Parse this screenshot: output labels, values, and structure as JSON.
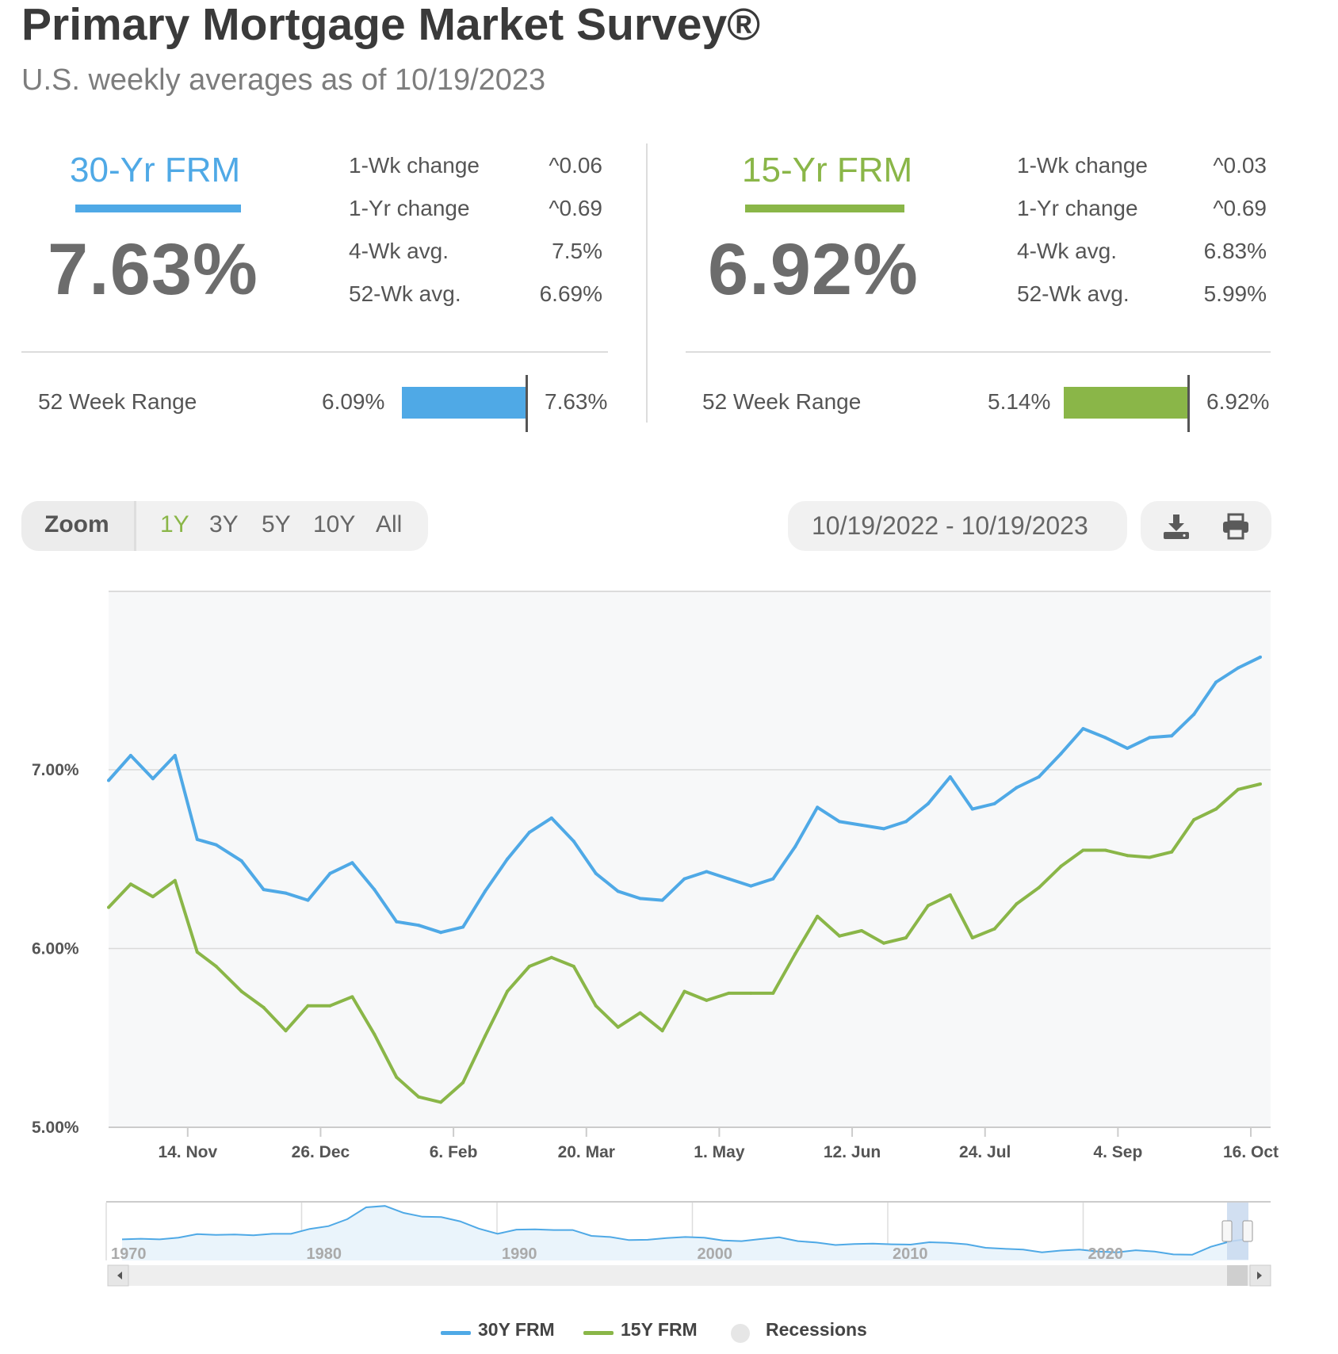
{
  "header": {
    "title": "Primary Mortgage Market Survey®",
    "subtitle": "U.S. weekly averages as of 10/19/2023"
  },
  "panels": [
    {
      "name": "30-Yr FRM",
      "color": "#4fa9e6",
      "rate": "7.63%",
      "stats": [
        {
          "label": "1-Wk change",
          "value": "0.06",
          "arrow": "^"
        },
        {
          "label": "1-Yr change",
          "value": "0.69",
          "arrow": "^"
        },
        {
          "label": "4-Wk avg.",
          "value": "7.5%"
        },
        {
          "label": "52-Wk avg.",
          "value": "6.69%"
        }
      ],
      "range": {
        "label": "52 Week Range",
        "low": "6.09%",
        "high": "7.63%",
        "current_fraction": 1.0
      }
    },
    {
      "name": "15-Yr FRM",
      "color": "#8ab648",
      "rate": "6.92%",
      "stats": [
        {
          "label": "1-Wk change",
          "value": "0.03",
          "arrow": "^"
        },
        {
          "label": "1-Yr change",
          "value": "0.69",
          "arrow": "^"
        },
        {
          "label": "4-Wk avg.",
          "value": "6.83%"
        },
        {
          "label": "52-Wk avg.",
          "value": "5.99%"
        }
      ],
      "range": {
        "label": "52 Week Range",
        "low": "5.14%",
        "high": "6.92%",
        "current_fraction": 1.0
      }
    }
  ],
  "toolbar": {
    "zoom_label": "Zoom",
    "zoom_options": [
      "1Y",
      "3Y",
      "5Y",
      "10Y",
      "All"
    ],
    "selected_zoom": "1Y",
    "date_range": "10/19/2022 - 10/19/2023",
    "selected_color": "#8ab648",
    "icons": [
      "download-icon",
      "print-icon"
    ]
  },
  "chart_data": {
    "type": "line",
    "x_ticks": [
      "14. Nov",
      "26. Dec",
      "6. Feb",
      "20. Mar",
      "1. May",
      "12. Jun",
      "24. Jul",
      "4. Sep",
      "16. Oct"
    ],
    "y_ticks": [
      "5.00%",
      "6.00%",
      "7.00%"
    ],
    "y_tick_values": [
      5.0,
      6.0,
      7.0
    ],
    "ylim": [
      5.0,
      8.0
    ],
    "grid": true,
    "x": [
      "2022-10-20",
      "2022-10-27",
      "2022-11-03",
      "2022-11-10",
      "2022-11-17",
      "2022-11-23",
      "2022-12-01",
      "2022-12-08",
      "2022-12-15",
      "2022-12-22",
      "2022-12-29",
      "2023-01-05",
      "2023-01-12",
      "2023-01-19",
      "2023-01-26",
      "2023-02-02",
      "2023-02-09",
      "2023-02-16",
      "2023-02-23",
      "2023-03-02",
      "2023-03-09",
      "2023-03-16",
      "2023-03-23",
      "2023-03-30",
      "2023-04-06",
      "2023-04-13",
      "2023-04-20",
      "2023-04-27",
      "2023-05-04",
      "2023-05-11",
      "2023-05-18",
      "2023-05-25",
      "2023-06-01",
      "2023-06-08",
      "2023-06-15",
      "2023-06-22",
      "2023-06-29",
      "2023-07-06",
      "2023-07-13",
      "2023-07-20",
      "2023-07-27",
      "2023-08-03",
      "2023-08-10",
      "2023-08-17",
      "2023-08-24",
      "2023-08-31",
      "2023-09-07",
      "2023-09-14",
      "2023-09-21",
      "2023-09-28",
      "2023-10-05",
      "2023-10-12",
      "2023-10-19"
    ],
    "series": [
      {
        "name": "30Y FRM",
        "color": "#4fa9e6",
        "values": [
          6.94,
          7.08,
          6.95,
          7.08,
          6.61,
          6.58,
          6.49,
          6.33,
          6.31,
          6.27,
          6.42,
          6.48,
          6.33,
          6.15,
          6.13,
          6.09,
          6.12,
          6.32,
          6.5,
          6.65,
          6.73,
          6.6,
          6.42,
          6.32,
          6.28,
          6.27,
          6.39,
          6.43,
          6.39,
          6.35,
          6.39,
          6.57,
          6.79,
          6.71,
          6.69,
          6.67,
          6.71,
          6.81,
          6.96,
          6.78,
          6.81,
          6.9,
          6.96,
          7.09,
          7.23,
          7.18,
          7.12,
          7.18,
          7.19,
          7.31,
          7.49,
          7.57,
          7.63
        ]
      },
      {
        "name": "15Y FRM",
        "color": "#8ab648",
        "values": [
          6.23,
          6.36,
          6.29,
          6.38,
          5.98,
          5.9,
          5.76,
          5.67,
          5.54,
          5.68,
          5.68,
          5.73,
          5.52,
          5.28,
          5.17,
          5.14,
          5.25,
          5.51,
          5.76,
          5.9,
          5.95,
          5.9,
          5.68,
          5.56,
          5.64,
          5.54,
          5.76,
          5.71,
          5.75,
          5.75,
          5.75,
          5.97,
          6.18,
          6.07,
          6.1,
          6.03,
          6.06,
          6.24,
          6.3,
          6.06,
          6.11,
          6.25,
          6.34,
          6.46,
          6.55,
          6.55,
          6.52,
          6.51,
          6.54,
          6.72,
          6.78,
          6.89,
          6.92
        ]
      }
    ],
    "navigator": {
      "labels": [
        "1970",
        "1980",
        "1990",
        "2000",
        "2010",
        "2020"
      ],
      "series_values": [
        7.4,
        7.6,
        7.4,
        7.9,
        8.9,
        8.7,
        8.8,
        8.6,
        9.0,
        9.0,
        10.4,
        11.2,
        13.2,
        16.6,
        17.0,
        15.0,
        13.9,
        13.8,
        12.6,
        10.5,
        9.0,
        10.2,
        10.3,
        10.1,
        10.1,
        8.4,
        8.1,
        7.2,
        7.3,
        7.8,
        8.1,
        7.9,
        7.1,
        6.9,
        7.5,
        8.0,
        6.9,
        6.5,
        5.8,
        6.1,
        6.2,
        6.0,
        5.9,
        6.6,
        6.4,
        6.0,
        5.0,
        4.7,
        4.5,
        3.7,
        4.2,
        4.5,
        3.9,
        3.7,
        4.3,
        3.9,
        3.1,
        3.0,
        5.3,
        6.8,
        7.6
      ]
    },
    "legend": [
      {
        "name": "30Y FRM",
        "color": "#4fa9e6",
        "kind": "line"
      },
      {
        "name": "15Y FRM",
        "color": "#8ab648",
        "kind": "line"
      },
      {
        "name": "Recessions",
        "color": "#e6e6e6",
        "kind": "dot"
      }
    ]
  }
}
